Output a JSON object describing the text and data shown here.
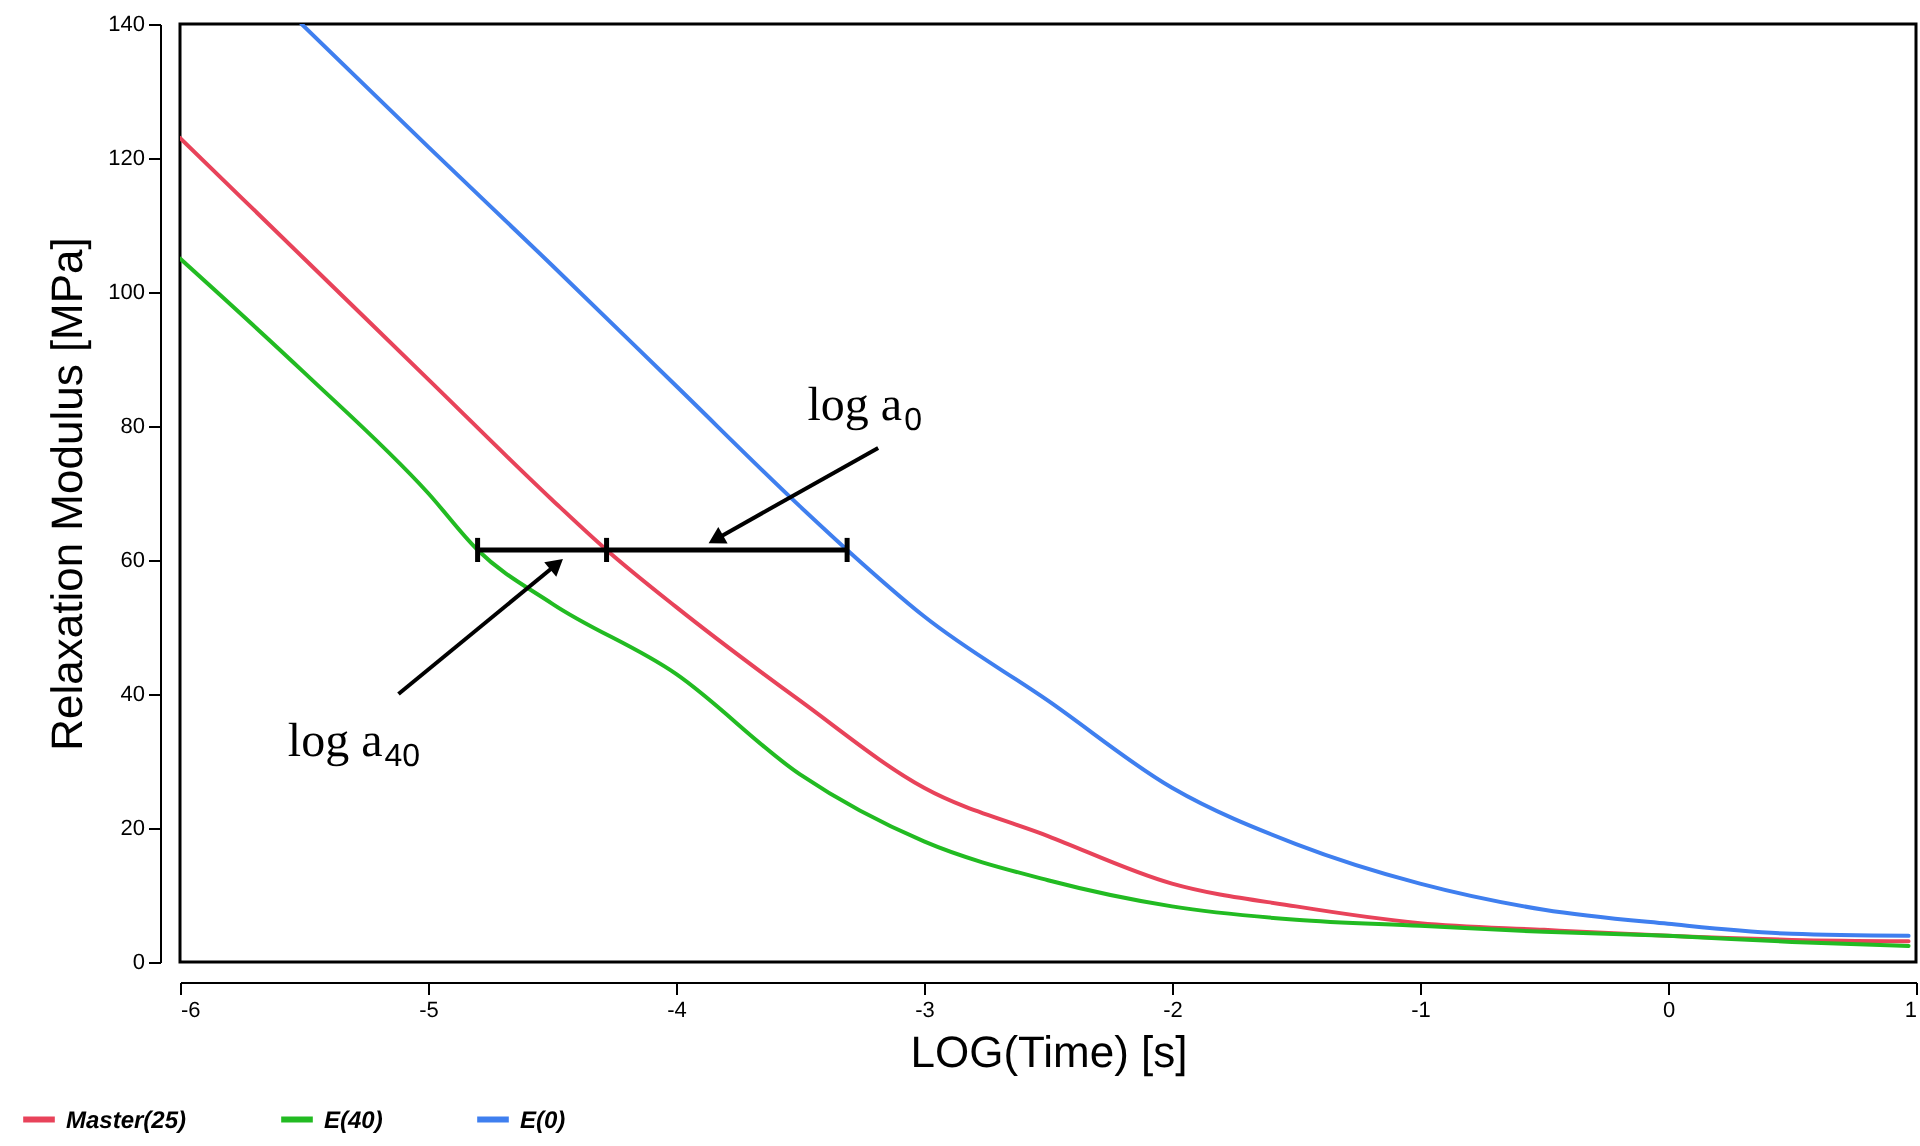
{
  "chart_data": {
    "type": "line",
    "xlabel": "LOG(Time) [s]",
    "ylabel": "Relaxation Modulus [MPa]",
    "xlim": [
      -6,
      1
    ],
    "ylim": [
      0,
      140
    ],
    "xticks": [
      -6,
      -5,
      -4,
      -3,
      -2,
      -1,
      0,
      1
    ],
    "yticks": [
      0,
      20,
      40,
      60,
      80,
      100,
      120,
      140
    ],
    "grid": false,
    "legend": "bottom left",
    "line_style": "solid",
    "series": [
      {
        "name": "Master(25)",
        "color": "#e8435a",
        "x": [
          -6,
          -5.5,
          -5,
          -4.5,
          -4.28,
          -4,
          -3.5,
          -3,
          -2.5,
          -2,
          -1.5,
          -1,
          -0.5,
          0,
          0.5,
          0.97
        ],
        "values": [
          123,
          105,
          87,
          69,
          61.5,
          53,
          39,
          26,
          18.8,
          11.7,
          8.3,
          5.8,
          4.8,
          3.9,
          3.3,
          3.1
        ]
      },
      {
        "name": "E(40)",
        "color": "#22bb22",
        "x": [
          -6,
          -5.5,
          -5,
          -4.8,
          -4.5,
          -4,
          -3.5,
          -3,
          -2.5,
          -2,
          -1.5,
          -1,
          -0.5,
          0,
          0.5,
          0.97
        ],
        "values": [
          105,
          88,
          70,
          61.5,
          53.5,
          43,
          28,
          18,
          12.2,
          8.3,
          6.3,
          5.4,
          4.5,
          3.9,
          3.0,
          2.4
        ]
      },
      {
        "name": "E(0)",
        "color": "#3f7fef",
        "x": [
          -5.51,
          -5,
          -4.5,
          -4,
          -3.5,
          -3.31,
          -3,
          -2.5,
          -2,
          -1.5,
          -1,
          -0.5,
          0,
          0.5,
          0.97
        ],
        "values": [
          140,
          121.7,
          104,
          86,
          68,
          61.5,
          51.6,
          39,
          26,
          17.6,
          11.7,
          7.8,
          5.7,
          4.2,
          3.9
        ]
      },
      {
        "type": "line",
        "color": "#000000",
        "x": [
          -4.8,
          -4.28,
          -3.31
        ],
        "values": [
          61.5,
          61.5,
          61.5
        ],
        "errors": [
          1.8,
          1.8,
          1.8
        ]
      }
    ],
    "annotations": [
      {
        "text": "log a$_{0}$",
        "x": -3.83,
        "y": 63.3
      },
      {
        "text": "log a$_{40}$",
        "x": -4.49,
        "y": 59.1
      }
    ]
  }
}
